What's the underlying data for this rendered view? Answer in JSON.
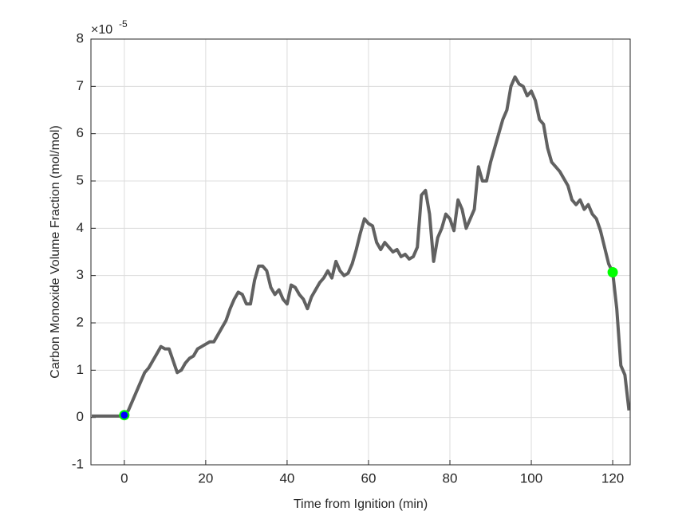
{
  "chart_data": {
    "type": "line",
    "xlabel": "Time from Ignition (min)",
    "ylabel": "Carbon Monoxide Volume Fraction (mol/mol)",
    "exponent_base": "×10",
    "exponent": "-5",
    "x": [
      -8,
      -7,
      -6,
      -5,
      -4,
      -3,
      -2,
      -1,
      0,
      1,
      2,
      3,
      4,
      5,
      6,
      7,
      8,
      9,
      10,
      11,
      12,
      13,
      14,
      15,
      16,
      17,
      18,
      19,
      20,
      21,
      22,
      23,
      24,
      25,
      26,
      27,
      28,
      29,
      30,
      31,
      32,
      33,
      34,
      35,
      36,
      37,
      38,
      39,
      40,
      41,
      42,
      43,
      44,
      45,
      46,
      47,
      48,
      49,
      50,
      51,
      52,
      53,
      54,
      55,
      56,
      57,
      58,
      59,
      60,
      61,
      62,
      63,
      64,
      65,
      66,
      67,
      68,
      69,
      70,
      71,
      72,
      73,
      74,
      75,
      76,
      77,
      78,
      79,
      80,
      81,
      82,
      83,
      84,
      85,
      86,
      87,
      88,
      89,
      90,
      91,
      92,
      93,
      94,
      95,
      96,
      97,
      98,
      99,
      100,
      101,
      102,
      103,
      104,
      105,
      106,
      107,
      108,
      109,
      110,
      111,
      112,
      113,
      114,
      115,
      116,
      117,
      118,
      119,
      120,
      121,
      122,
      123,
      124
    ],
    "values": [
      0.03,
      0.03,
      0.03,
      0.03,
      0.03,
      0.03,
      0.03,
      0.03,
      0.05,
      0.15,
      0.35,
      0.55,
      0.75,
      0.95,
      1.05,
      1.2,
      1.35,
      1.5,
      1.45,
      1.45,
      1.2,
      0.95,
      1.0,
      1.15,
      1.25,
      1.3,
      1.45,
      1.5,
      1.55,
      1.6,
      1.6,
      1.75,
      1.9,
      2.05,
      2.3,
      2.5,
      2.65,
      2.6,
      2.4,
      2.4,
      2.9,
      3.2,
      3.2,
      3.1,
      2.75,
      2.6,
      2.7,
      2.5,
      2.4,
      2.8,
      2.75,
      2.6,
      2.5,
      2.3,
      2.55,
      2.7,
      2.85,
      2.95,
      3.1,
      2.95,
      3.3,
      3.1,
      3.0,
      3.05,
      3.25,
      3.55,
      3.9,
      4.2,
      4.1,
      4.05,
      3.7,
      3.55,
      3.7,
      3.6,
      3.5,
      3.55,
      3.4,
      3.45,
      3.35,
      3.4,
      3.6,
      4.7,
      4.8,
      4.3,
      3.3,
      3.8,
      4.0,
      4.3,
      4.2,
      3.95,
      4.6,
      4.4,
      4.0,
      4.2,
      4.4,
      5.3,
      5.0,
      5.0,
      5.4,
      5.7,
      6.0,
      6.3,
      6.5,
      7.0,
      7.2,
      7.05,
      7.0,
      6.8,
      6.9,
      6.7,
      6.3,
      6.2,
      5.7,
      5.4,
      5.3,
      5.2,
      5.05,
      4.9,
      4.6,
      4.5,
      4.6,
      4.4,
      4.5,
      4.3,
      4.2,
      3.95,
      3.6,
      3.25,
      3.07,
      2.3,
      1.1,
      0.9,
      0.15
    ],
    "color": "#616161",
    "markers": [
      {
        "x": 0,
        "y": 0.05,
        "color": "#00ff00"
      },
      {
        "x": 0,
        "y": 0.05,
        "color": "#0000ff"
      },
      {
        "x": 120,
        "y": 3.07,
        "color": "#00ff00"
      }
    ],
    "xlim": [
      -8.2,
      124.3
    ],
    "ylim": [
      -1,
      8
    ],
    "xticks": [
      0,
      20,
      40,
      60,
      80,
      100,
      120
    ],
    "yticks": [
      -1,
      0,
      1,
      2,
      3,
      4,
      5,
      6,
      7,
      8
    ],
    "grid": true
  }
}
